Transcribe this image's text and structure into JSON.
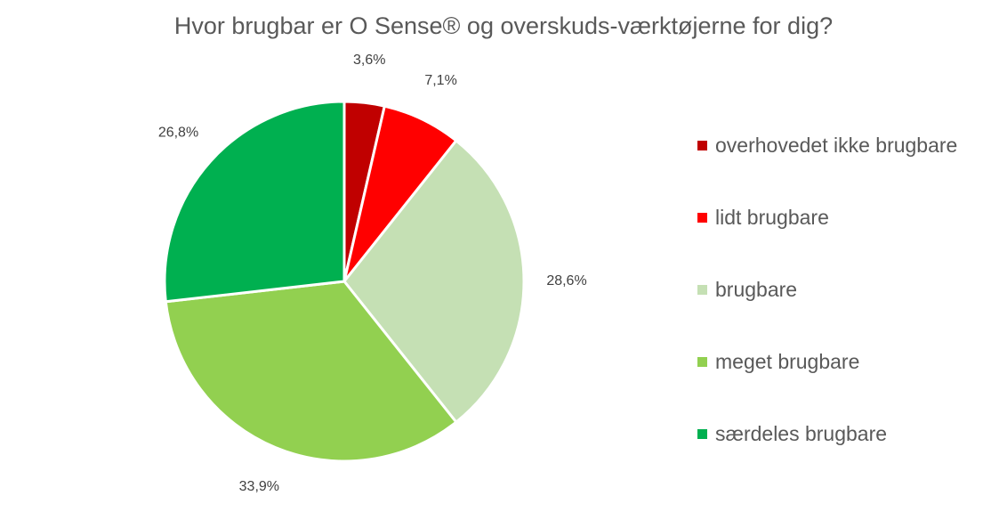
{
  "chart_data": {
    "type": "pie",
    "title": "Hvor brugbar er O Sense® og overskuds-værktøjerne for dig?",
    "legend_position": "right",
    "slices": [
      {
        "label": "overhovedet ikke brugbare",
        "value": 3.6,
        "value_label": "3,6%",
        "color": "#C00000"
      },
      {
        "label": "lidt brugbare",
        "value": 7.1,
        "value_label": "7,1%",
        "color": "#FF0000"
      },
      {
        "label": "brugbare",
        "value": 28.6,
        "value_label": "28,6%",
        "color": "#C5E0B4"
      },
      {
        "label": "meget brugbare",
        "value": 33.9,
        "value_label": "33,9%",
        "color": "#92D050"
      },
      {
        "label": "særdeles brugbare",
        "value": 26.8,
        "value_label": "26,8%",
        "color": "#00B050"
      }
    ]
  }
}
